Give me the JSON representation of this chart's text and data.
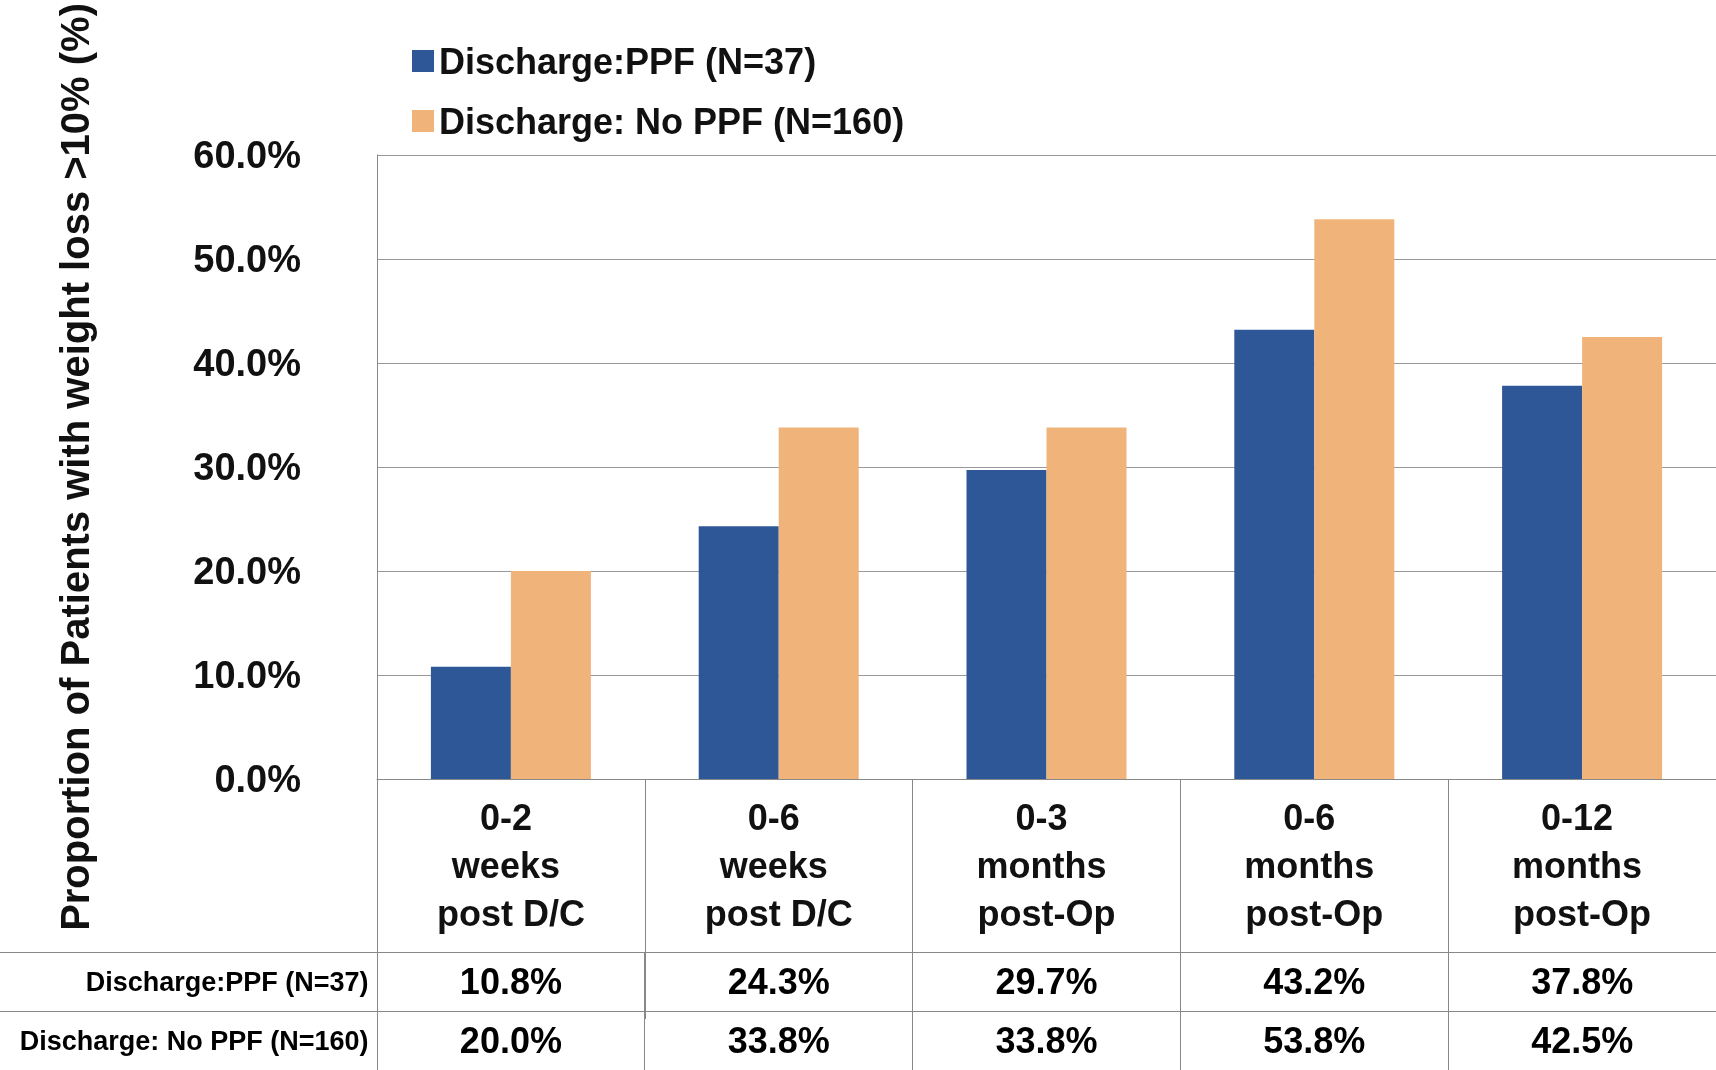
{
  "chart_data": {
    "type": "bar",
    "ylabel": "Proportion of Patients with weight loss >10% (%)",
    "categories": [
      "0-2 weeks post D/C",
      "0-6 weeks post D/C",
      "0-3 months post-Op",
      "0-6 months post-Op",
      "0-12 months post-Op"
    ],
    "series": [
      {
        "name": "Discharge:PPF (N=37)",
        "color": "#2e5797",
        "values": [
          10.8,
          24.3,
          29.7,
          43.2,
          37.8
        ],
        "value_labels": [
          "10.8%",
          "24.3%",
          "29.7%",
          "43.2%",
          "37.8%"
        ]
      },
      {
        "name": "Discharge: No PPF (N=160)",
        "color": "#f0b47a",
        "values": [
          20.0,
          33.8,
          33.8,
          53.8,
          42.5
        ],
        "value_labels": [
          "20.0%",
          "33.8%",
          "33.8%",
          "53.8%",
          "42.5%"
        ]
      }
    ],
    "ylim": [
      0,
      60
    ],
    "yticks": [
      {
        "value": 0,
        "label": "0.0%"
      },
      {
        "value": 10,
        "label": "10.0%"
      },
      {
        "value": 20,
        "label": "20.0%"
      },
      {
        "value": 30,
        "label": "30.0%"
      },
      {
        "value": 40,
        "label": "40.0%"
      },
      {
        "value": 50,
        "label": "50.0%"
      },
      {
        "value": 60,
        "label": "60.0%"
      }
    ],
    "grid": "y",
    "legend": "top left"
  }
}
